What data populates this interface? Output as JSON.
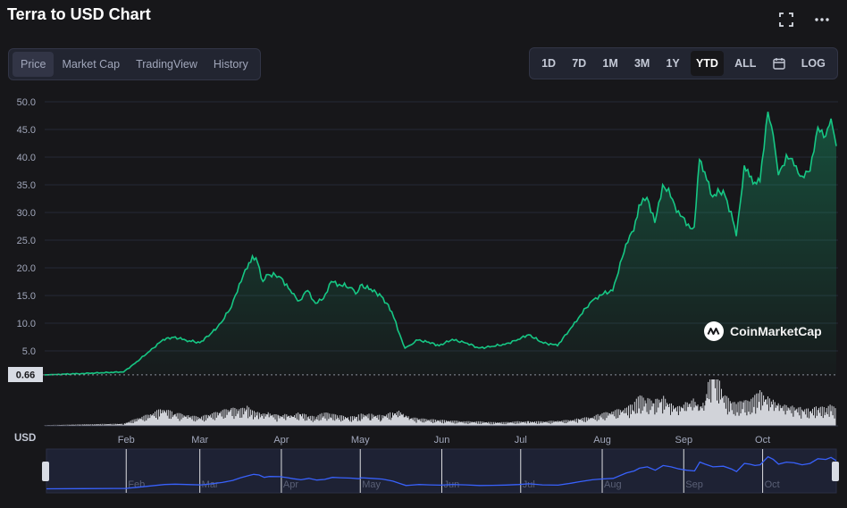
{
  "header": {
    "title": "Terra to USD Chart"
  },
  "icons": {
    "fullscreen": "fullscreen-icon",
    "more": "more-options-icon",
    "calendar": "calendar-icon"
  },
  "tabs": [
    {
      "label": "Price",
      "active": true
    },
    {
      "label": "Market Cap",
      "active": false
    },
    {
      "label": "TradingView",
      "active": false
    },
    {
      "label": "History",
      "active": false
    }
  ],
  "ranges": [
    {
      "label": "1D",
      "active": false
    },
    {
      "label": "7D",
      "active": false
    },
    {
      "label": "1M",
      "active": false
    },
    {
      "label": "3M",
      "active": false
    },
    {
      "label": "1Y",
      "active": false
    },
    {
      "label": "YTD",
      "active": true
    },
    {
      "label": "ALL",
      "active": false
    },
    {
      "label": "LOG",
      "active": false
    }
  ],
  "watermark": "CoinMarketCap",
  "currency_label": "USD",
  "colors": {
    "line": "#16c784",
    "volume": "#e6e8ee",
    "navigator_line": "#3861fb",
    "background": "#17171a"
  },
  "chart_data": {
    "type": "area",
    "title": "Terra to USD Chart",
    "xlabel": "",
    "ylabel": "USD",
    "ylim": [
      0,
      50
    ],
    "yticks": [
      "50.0",
      "45.0",
      "40.0",
      "35.0",
      "30.0",
      "25.0",
      "20.0",
      "15.0",
      "10.0",
      "5.0"
    ],
    "ytick_values": [
      50,
      45,
      40,
      35,
      30,
      25,
      20,
      15,
      10,
      5
    ],
    "start_label": "0.66",
    "start_value": 0.66,
    "x_labels": [
      "Feb",
      "Mar",
      "Apr",
      "May",
      "Jun",
      "Jul",
      "Aug",
      "Sep",
      "Oct"
    ],
    "x": [
      "2021-01-01",
      "2021-01-15",
      "2021-01-31",
      "2021-02-05",
      "2021-02-10",
      "2021-02-15",
      "2021-02-19",
      "2021-02-25",
      "2021-03-01",
      "2021-03-05",
      "2021-03-09",
      "2021-03-13",
      "2021-03-16",
      "2021-03-19",
      "2021-03-21",
      "2021-03-23",
      "2021-03-25",
      "2021-03-27",
      "2021-03-31",
      "2021-04-03",
      "2021-04-05",
      "2021-04-08",
      "2021-04-11",
      "2021-04-14",
      "2021-04-17",
      "2021-04-20",
      "2021-04-23",
      "2021-04-27",
      "2021-04-30",
      "2021-05-01",
      "2021-05-05",
      "2021-05-09",
      "2021-05-13",
      "2021-05-16",
      "2021-05-18",
      "2021-05-20",
      "2021-05-23",
      "2021-05-27",
      "2021-05-31",
      "2021-06-05",
      "2021-06-10",
      "2021-06-15",
      "2021-06-20",
      "2021-06-25",
      "2021-06-30",
      "2021-07-04",
      "2021-07-09",
      "2021-07-15",
      "2021-07-20",
      "2021-07-23",
      "2021-07-28",
      "2021-07-31",
      "2021-08-05",
      "2021-08-10",
      "2021-08-13",
      "2021-08-15",
      "2021-08-18",
      "2021-08-21",
      "2021-08-24",
      "2021-08-27",
      "2021-08-30",
      "2021-09-02",
      "2021-09-05",
      "2021-09-07",
      "2021-09-09",
      "2021-09-12",
      "2021-09-16",
      "2021-09-19",
      "2021-09-21",
      "2021-09-24",
      "2021-09-26",
      "2021-09-28",
      "2021-09-30",
      "2021-10-03",
      "2021-10-05",
      "2021-10-07",
      "2021-10-10",
      "2021-10-13",
      "2021-10-16",
      "2021-10-19",
      "2021-10-22",
      "2021-10-25",
      "2021-10-27",
      "2021-10-29"
    ],
    "values": [
      0.66,
      0.9,
      1.2,
      3,
      5,
      7,
      7.5,
      6.8,
      6.5,
      8,
      10,
      13,
      17,
      20,
      22,
      21,
      17.5,
      18.8,
      18.5,
      17,
      15.5,
      14,
      16,
      13.5,
      14.5,
      17.5,
      17,
      16.5,
      15.5,
      17,
      16,
      15,
      12,
      8,
      5.5,
      6,
      7,
      6.5,
      6,
      7,
      6.5,
      5.5,
      5.8,
      6.2,
      7,
      8,
      6.5,
      6,
      9,
      11,
      14,
      15,
      16,
      24,
      27,
      31,
      33,
      28,
      35,
      33,
      30,
      28,
      27,
      40,
      37,
      33,
      34,
      30,
      26,
      38,
      37,
      35,
      36,
      48,
      44,
      37,
      40,
      39,
      36,
      38,
      45,
      44,
      47,
      42
    ],
    "volume": [
      0.05,
      0.1,
      0.15,
      0.5,
      0.8,
      1.2,
      0.9,
      0.7,
      0.6,
      0.8,
      1.0,
      1.2,
      1.1,
      1.3,
      1.0,
      0.9,
      0.8,
      0.9,
      0.7,
      0.8,
      0.7,
      0.9,
      0.7,
      0.6,
      0.9,
      0.8,
      0.7,
      0.6,
      0.7,
      0.8,
      0.8,
      0.7,
      0.9,
      1.0,
      0.8,
      0.6,
      0.5,
      0.45,
      0.4,
      0.35,
      0.3,
      0.3,
      0.25,
      0.25,
      0.3,
      0.3,
      0.3,
      0.35,
      0.4,
      0.5,
      0.6,
      0.8,
      1.0,
      1.2,
      1.5,
      2.0,
      1.8,
      1.7,
      2.0,
      1.5,
      1.3,
      1.6,
      1.8,
      1.4,
      1.7,
      4.5,
      2.2,
      1.6,
      1.5,
      1.7,
      1.6,
      2.0,
      2.3,
      1.9,
      1.7,
      1.5,
      1.4,
      1.3,
      1.2,
      1.1,
      1.3,
      1.2,
      1.4,
      1.1
    ],
    "grid": true,
    "legend": "none"
  }
}
